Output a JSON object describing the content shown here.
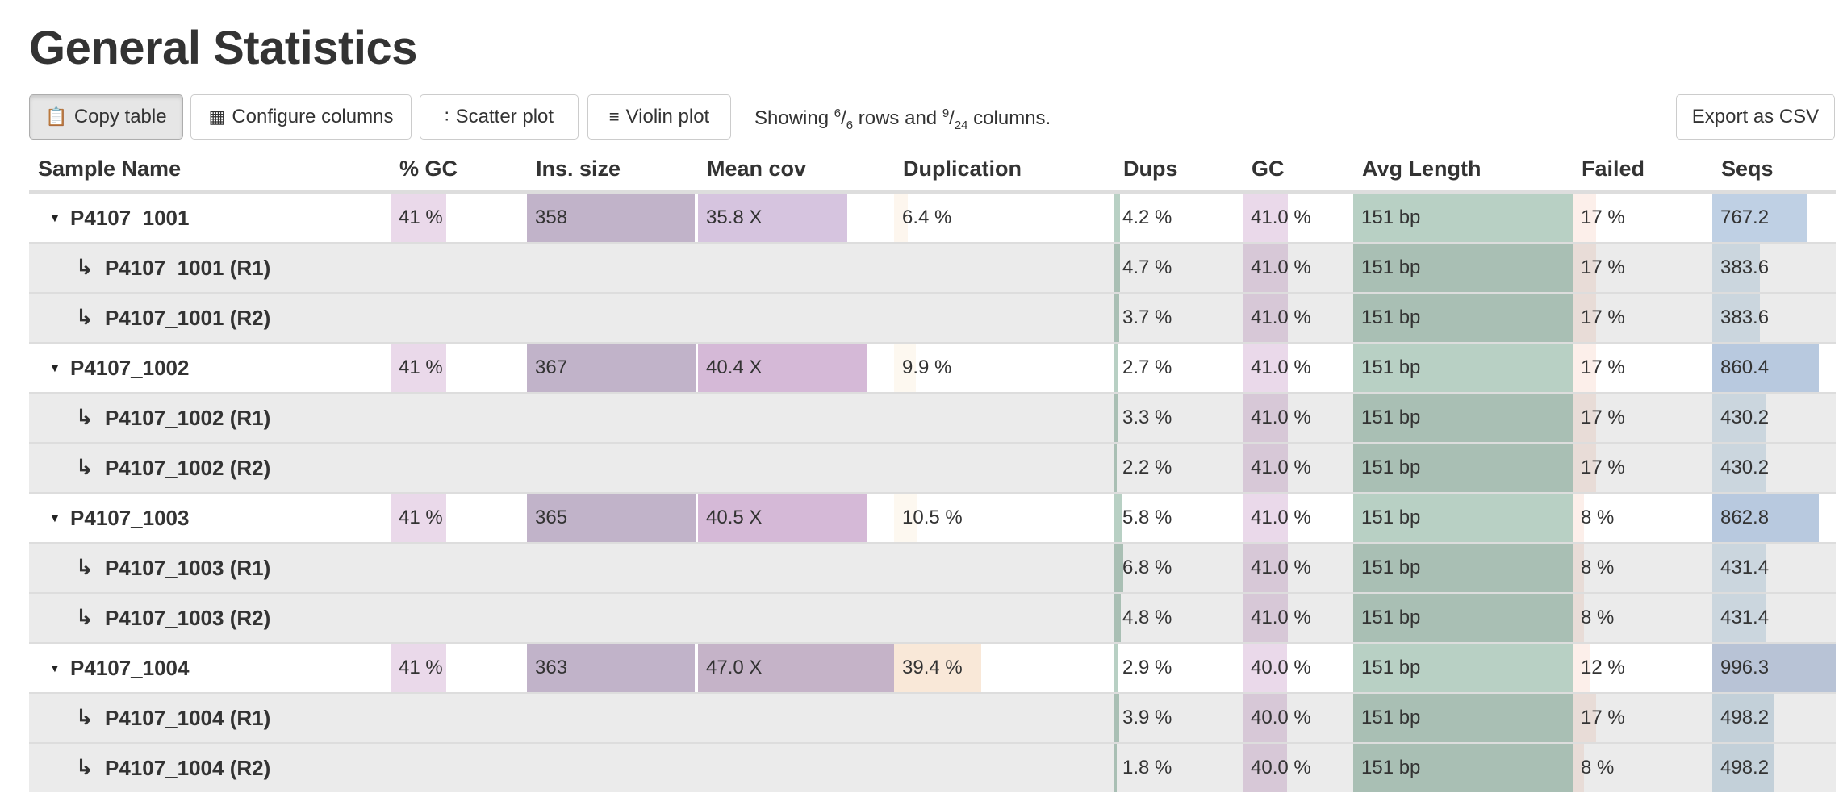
{
  "title": "General Statistics",
  "toolbar": {
    "copy_table": "Copy table",
    "configure_columns": "Configure columns",
    "scatter_plot": "Scatter plot",
    "violin_plot": "Violin plot",
    "export_csv": "Export as CSV",
    "showing": {
      "prefix": "Showing ",
      "rows_shown": "6",
      "rows_total": "6",
      "middle": " rows and ",
      "cols_shown": "9",
      "cols_total": "24",
      "suffix": " columns."
    }
  },
  "columns": [
    {
      "label": "Sample Name"
    },
    {
      "label": "% GC",
      "color": "#ead9ea"
    },
    {
      "label": "Ins. size",
      "color": "#c1b3c9"
    },
    {
      "label": "Mean cov",
      "color": "#d6c4df"
    },
    {
      "label": "Duplication",
      "color": "#f9e8d8"
    },
    {
      "label": "Dups",
      "color": "#b8d0c4"
    },
    {
      "label": "GC",
      "color": "#ead9ea"
    },
    {
      "label": "Avg Length",
      "color": "#b8d0c4"
    },
    {
      "label": "Failed",
      "color": "#fcefea"
    },
    {
      "label": "Seqs",
      "color": "#bfd0e4"
    }
  ],
  "rows": [
    {
      "name": "P4107_1001",
      "child": false,
      "cells": [
        {
          "v": "41 %",
          "f": 0.41
        },
        {
          "v": "358",
          "f": 0.98
        },
        {
          "v": "35.8 X",
          "f": 0.76,
          "c": "#d6c4df"
        },
        {
          "v": "6.4 %",
          "f": 0.064,
          "c": "#fdf6ee"
        },
        {
          "v": "4.2 %",
          "f": 0.042
        },
        {
          "v": "41.0 %",
          "f": 0.41
        },
        {
          "v": "151 bp",
          "f": 1
        },
        {
          "v": "17 %",
          "f": 0.17
        },
        {
          "v": "767.2",
          "f": 0.77,
          "c": "#bfd0e4"
        }
      ]
    },
    {
      "name": "P4107_1001 (R1)",
      "child": true,
      "cells": [
        null,
        null,
        null,
        null,
        {
          "v": "4.7 %",
          "f": 0.047
        },
        {
          "v": "41.0 %",
          "f": 0.41
        },
        {
          "v": "151 bp",
          "f": 1
        },
        {
          "v": "17 %",
          "f": 0.17
        },
        {
          "v": "383.6",
          "f": 0.385,
          "c": "#dde9f1"
        }
      ]
    },
    {
      "name": "P4107_1001 (R2)",
      "child": true,
      "cells": [
        null,
        null,
        null,
        null,
        {
          "v": "3.7 %",
          "f": 0.037
        },
        {
          "v": "41.0 %",
          "f": 0.41
        },
        {
          "v": "151 bp",
          "f": 1
        },
        {
          "v": "17 %",
          "f": 0.17
        },
        {
          "v": "383.6",
          "f": 0.385,
          "c": "#dde9f1"
        }
      ]
    },
    {
      "name": "P4107_1002",
      "child": false,
      "cells": [
        {
          "v": "41 %",
          "f": 0.41
        },
        {
          "v": "367",
          "f": 0.99
        },
        {
          "v": "40.4 X",
          "f": 0.86,
          "c": "#d5b9d7"
        },
        {
          "v": "9.9 %",
          "f": 0.099,
          "c": "#fdf8f0"
        },
        {
          "v": "2.7 %",
          "f": 0.027
        },
        {
          "v": "41.0 %",
          "f": 0.41
        },
        {
          "v": "151 bp",
          "f": 1
        },
        {
          "v": "17 %",
          "f": 0.17
        },
        {
          "v": "860.4",
          "f": 0.86,
          "c": "#b8c9df"
        }
      ]
    },
    {
      "name": "P4107_1002 (R1)",
      "child": true,
      "cells": [
        null,
        null,
        null,
        null,
        {
          "v": "3.3 %",
          "f": 0.033
        },
        {
          "v": "41.0 %",
          "f": 0.41
        },
        {
          "v": "151 bp",
          "f": 1
        },
        {
          "v": "17 %",
          "f": 0.17
        },
        {
          "v": "430.2",
          "f": 0.43,
          "c": "#dde9f1"
        }
      ]
    },
    {
      "name": "P4107_1002 (R2)",
      "child": true,
      "cells": [
        null,
        null,
        null,
        null,
        {
          "v": "2.2 %",
          "f": 0.022
        },
        {
          "v": "41.0 %",
          "f": 0.41
        },
        {
          "v": "151 bp",
          "f": 1
        },
        {
          "v": "17 %",
          "f": 0.17
        },
        {
          "v": "430.2",
          "f": 0.43,
          "c": "#dde9f1"
        }
      ]
    },
    {
      "name": "P4107_1003",
      "child": false,
      "cells": [
        {
          "v": "41 %",
          "f": 0.41
        },
        {
          "v": "365",
          "f": 0.99
        },
        {
          "v": "40.5 X",
          "f": 0.86,
          "c": "#d5b9d7"
        },
        {
          "v": "10.5 %",
          "f": 0.105,
          "c": "#fdf8f0"
        },
        {
          "v": "5.8 %",
          "f": 0.058
        },
        {
          "v": "41.0 %",
          "f": 0.41
        },
        {
          "v": "151 bp",
          "f": 1
        },
        {
          "v": "8 %",
          "f": 0.08
        },
        {
          "v": "862.8",
          "f": 0.865,
          "c": "#b8c9df"
        }
      ]
    },
    {
      "name": "P4107_1003 (R1)",
      "child": true,
      "cells": [
        null,
        null,
        null,
        null,
        {
          "v": "6.8 %",
          "f": 0.068
        },
        {
          "v": "41.0 %",
          "f": 0.41
        },
        {
          "v": "151 bp",
          "f": 1
        },
        {
          "v": "8 %",
          "f": 0.08
        },
        {
          "v": "431.4",
          "f": 0.43,
          "c": "#dde9f1"
        }
      ]
    },
    {
      "name": "P4107_1003 (R2)",
      "child": true,
      "cells": [
        null,
        null,
        null,
        null,
        {
          "v": "4.8 %",
          "f": 0.048
        },
        {
          "v": "41.0 %",
          "f": 0.41
        },
        {
          "v": "151 bp",
          "f": 1
        },
        {
          "v": "8 %",
          "f": 0.08
        },
        {
          "v": "431.4",
          "f": 0.43,
          "c": "#dde9f1"
        }
      ]
    },
    {
      "name": "P4107_1004",
      "child": false,
      "cells": [
        {
          "v": "41 %",
          "f": 0.41
        },
        {
          "v": "363",
          "f": 0.98
        },
        {
          "v": "47.0 X",
          "f": 1,
          "c": "#c5b3c8"
        },
        {
          "v": "39.4 %",
          "f": 0.394,
          "c": "#f9e8d8"
        },
        {
          "v": "2.9 %",
          "f": 0.029
        },
        {
          "v": "40.0 %",
          "f": 0.4
        },
        {
          "v": "151 bp",
          "f": 1
        },
        {
          "v": "12 %",
          "f": 0.12
        },
        {
          "v": "996.3",
          "f": 1,
          "c": "#b8c3d6"
        }
      ]
    },
    {
      "name": "P4107_1004 (R1)",
      "child": true,
      "cells": [
        null,
        null,
        null,
        null,
        {
          "v": "3.9 %",
          "f": 0.039
        },
        {
          "v": "40.0 %",
          "f": 0.4
        },
        {
          "v": "151 bp",
          "f": 1
        },
        {
          "v": "17 %",
          "f": 0.17
        },
        {
          "v": "498.2",
          "f": 0.5,
          "c": "#d4e2ec"
        }
      ]
    },
    {
      "name": "P4107_1004 (R2)",
      "child": true,
      "cells": [
        null,
        null,
        null,
        null,
        {
          "v": "1.8 %",
          "f": 0.018
        },
        {
          "v": "40.0 %",
          "f": 0.4
        },
        {
          "v": "151 bp",
          "f": 1
        },
        {
          "v": "8 %",
          "f": 0.08
        },
        {
          "v": "498.2",
          "f": 0.5,
          "c": "#d4e2ec"
        }
      ]
    }
  ]
}
